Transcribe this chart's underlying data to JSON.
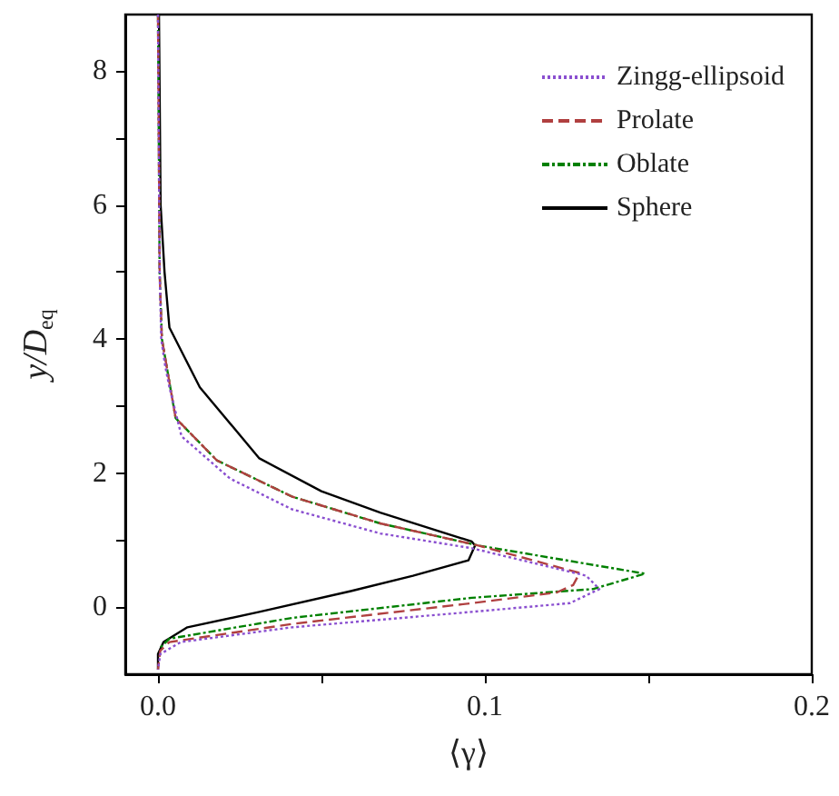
{
  "chart_data": {
    "type": "line",
    "xlabel": "⟨γ⟩",
    "ylabel": "y/D$_{eq}$",
    "xlim": [
      -0.01,
      0.2
    ],
    "ylim": [
      -1,
      8.84
    ],
    "xticks": [
      {
        "value": 0,
        "label": "0.0"
      },
      {
        "value": 0.05,
        "label": null
      },
      {
        "value": 0.1,
        "label": "0.1"
      },
      {
        "value": 0.15,
        "label": null
      },
      {
        "value": 0.2,
        "label": "0.2"
      }
    ],
    "yticks": [
      0,
      {
        "value": 1,
        "label": null
      },
      2,
      {
        "value": 3,
        "label": null
      },
      4,
      {
        "value": 5,
        "label": null
      },
      6,
      {
        "value": 7,
        "label": null
      },
      8
    ],
    "grid": false,
    "legend": "top right",
    "marker": "none",
    "series": [
      {
        "name": "Zingg-ellipsoid",
        "color": "#8a4fd0",
        "line_style": "dotted",
        "x": [
          0,
          0.0005,
          0.001,
          0.0022,
          0.0035,
          0.0072,
          0.022,
          0.041,
          0.068,
          0.096,
          0.131,
          0.135,
          0.126,
          0.096,
          0.041,
          0.007,
          0.0007,
          0
        ],
        "values": [
          8.84,
          5,
          4,
          3.6,
          3.28,
          2.55,
          1.92,
          1.46,
          1.1,
          0.88,
          0.47,
          0.27,
          0.06,
          -0.07,
          -0.3,
          -0.52,
          -0.7,
          -0.93
        ]
      },
      {
        "name": "Prolate",
        "color": "#b04040",
        "line_style": "dashed",
        "x": [
          0,
          0.0005,
          0.0012,
          0.0054,
          0.018,
          0.041,
          0.068,
          0.098,
          0.129,
          0.127,
          0.122,
          0.096,
          0.041,
          0.0035,
          0.0007,
          0
        ],
        "values": [
          8.84,
          5,
          4,
          2.82,
          2.19,
          1.65,
          1.25,
          0.92,
          0.51,
          0.33,
          0.22,
          0.06,
          -0.25,
          -0.52,
          -0.65,
          -0.93
        ]
      },
      {
        "name": "Oblate",
        "color": "#008000",
        "line_style": "dashdot",
        "x": [
          0,
          0.0005,
          0.0012,
          0.0054,
          0.018,
          0.041,
          0.068,
          0.098,
          0.149,
          0.133,
          0.096,
          0.041,
          0.0035,
          0.0007
        ],
        "values": [
          8.84,
          5,
          4,
          2.82,
          2.19,
          1.65,
          1.25,
          0.92,
          0.5,
          0.27,
          0.14,
          -0.16,
          -0.47,
          -0.6
        ]
      },
      {
        "name": "Sphere",
        "color": "#000000",
        "line_style": "solid",
        "x": [
          0.0003,
          0.0008,
          0.002,
          0.0035,
          0.0128,
          0.031,
          0.05,
          0.068,
          0.096,
          0.097,
          0.095,
          0.078,
          0.059,
          0.031,
          0.009,
          0.0017,
          0,
          0
        ],
        "values": [
          8.84,
          6,
          5,
          4.17,
          3.28,
          2.22,
          1.73,
          1.41,
          0.98,
          0.92,
          0.7,
          0.47,
          0.24,
          -0.07,
          -0.3,
          -0.52,
          -0.7,
          -0.93
        ]
      }
    ]
  }
}
